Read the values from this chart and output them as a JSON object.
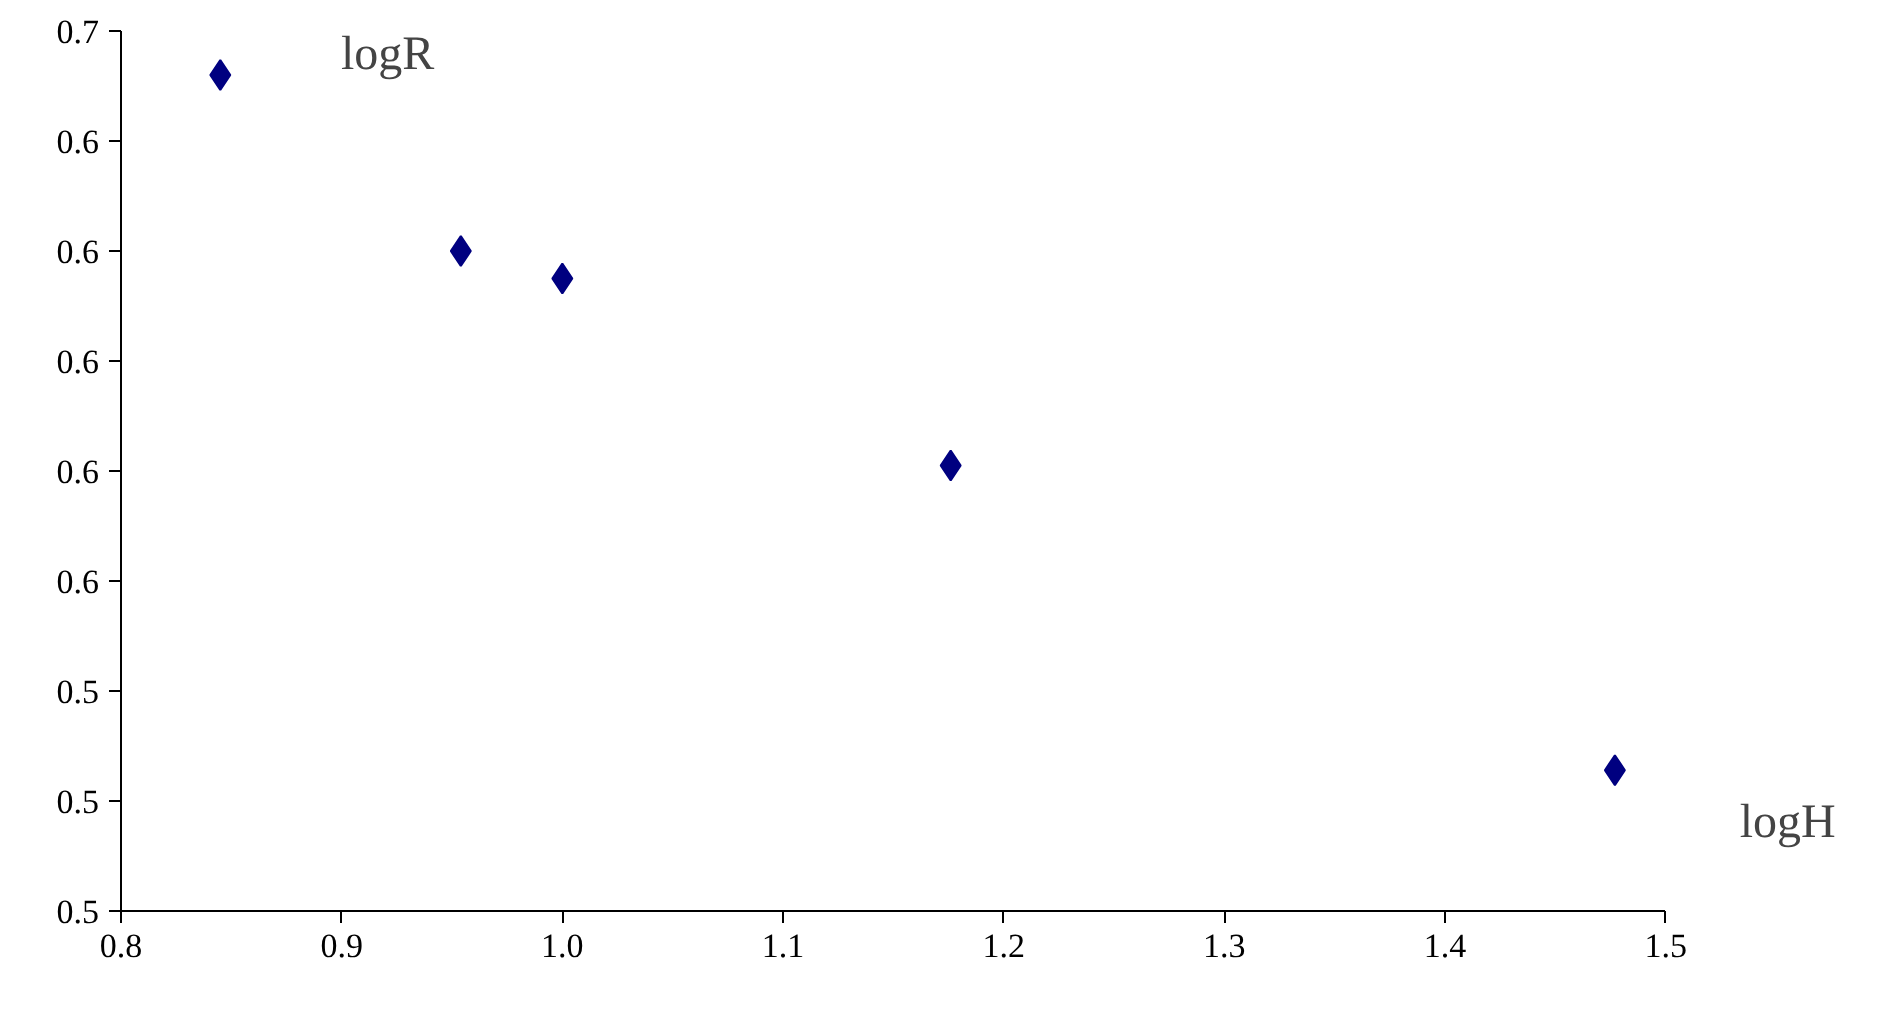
{
  "chart_data": {
    "type": "scatter",
    "xlabel": "logH",
    "ylabel": "logR",
    "x": [
      0.845,
      0.954,
      1.0,
      1.176,
      1.477
    ],
    "series": [
      {
        "color": "#000080",
        "values": [
          0.652,
          0.62,
          0.615,
          0.581,
          0.5256
        ]
      }
    ],
    "xlim": [
      0.8,
      1.5
    ],
    "xticks": [
      {
        "value": 0.8,
        "label": "0.8"
      },
      {
        "value": 0.9,
        "label": "0.9"
      },
      {
        "value": 1.0,
        "label": "1.0"
      },
      {
        "value": 1.1,
        "label": "1.1"
      },
      {
        "value": 1.2,
        "label": "1.2"
      },
      {
        "value": 1.3,
        "label": "1.3"
      },
      {
        "value": 1.4,
        "label": "1.4"
      },
      {
        "value": 1.5,
        "label": "1.5"
      }
    ],
    "ylim": [
      0.5,
      0.66
    ],
    "yticks": [
      {
        "value": 0.5,
        "label": "0.5"
      },
      {
        "value": 0.52,
        "label": "0.5"
      },
      {
        "value": 0.54,
        "label": "0.5"
      },
      {
        "value": 0.56,
        "label": "0.6"
      },
      {
        "value": 0.58,
        "label": "0.6"
      },
      {
        "value": 0.6,
        "label": "0.6"
      },
      {
        "value": 0.62,
        "label": "0.6"
      },
      {
        "value": 0.64,
        "label": "0.6"
      },
      {
        "value": 0.66,
        "label": "0.7"
      }
    ],
    "marker": "diamond",
    "grid": false
  }
}
